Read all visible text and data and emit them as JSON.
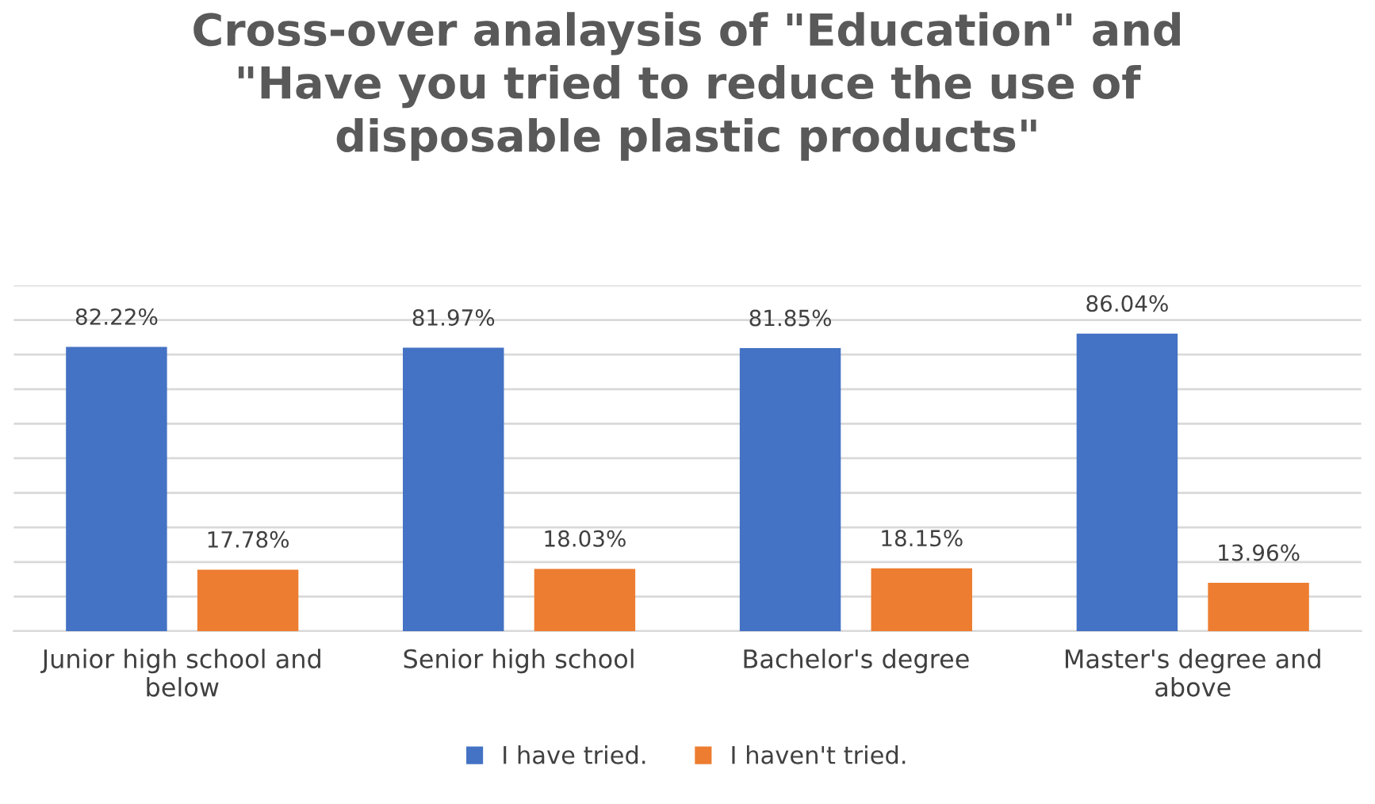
{
  "chart_data": {
    "type": "bar",
    "title": "Cross-over analaysis of \"Education\" and\n\"Have you tried to reduce the use of\ndisposable plastic products\"",
    "categories": [
      "Junior high school and\nbelow",
      "Senior high school",
      "Bachelor's degree",
      "Master's degree and\nabove"
    ],
    "series": [
      {
        "name": "I have tried.",
        "color": "#4472c4",
        "values": [
          82.22,
          81.97,
          81.85,
          86.04
        ],
        "value_labels": [
          "82.22%",
          "81.97%",
          "81.85%",
          "86.04%"
        ]
      },
      {
        "name": "I haven't tried.",
        "color": "#ed7d31",
        "values": [
          17.78,
          18.03,
          18.15,
          13.96
        ],
        "value_labels": [
          "17.78%",
          "18.03%",
          "18.15%",
          "13.96%"
        ]
      }
    ],
    "ylim": [
      0,
      100
    ],
    "yticks": [
      {
        "value": 0,
        "label": null
      },
      {
        "value": 10,
        "label": null
      },
      {
        "value": 20,
        "label": null
      },
      {
        "value": 30,
        "label": null
      },
      {
        "value": 40,
        "label": null
      },
      {
        "value": 50,
        "label": null
      },
      {
        "value": 60,
        "label": null
      },
      {
        "value": 70,
        "label": null
      },
      {
        "value": 80,
        "label": null
      },
      {
        "value": 90,
        "label": null
      },
      {
        "value": 100,
        "label": null
      }
    ],
    "grid": "y",
    "legend": "bottom"
  }
}
